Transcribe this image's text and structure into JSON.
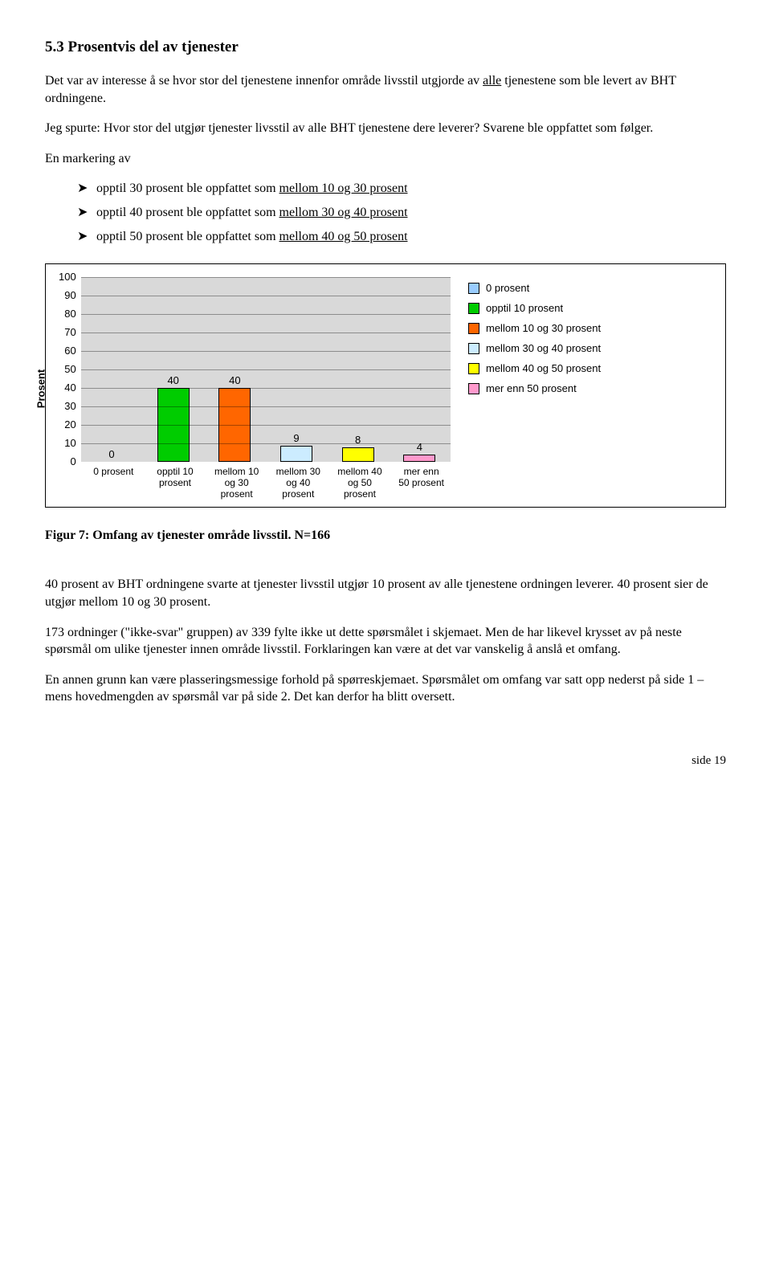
{
  "heading": "5.3   Prosentvis del av tjenester",
  "para1_a": "Det var av interesse å se hvor stor del tjenestene innenfor område livsstil utgjorde av ",
  "para1_u": "alle",
  "para1_b": " tjenestene som ble levert av BHT ordningene.",
  "para2": "Jeg spurte: Hvor stor del utgjør tjenester livsstil av alle BHT tjenestene dere leverer? Svarene ble oppfattet som følger.",
  "list_intro": "En markering av",
  "bullets": [
    {
      "pre": "opptil 30 prosent ble oppfattet som ",
      "u": "mellom 10 og 30 prosent"
    },
    {
      "pre": "opptil 40 prosent ble oppfattet som ",
      "u": "mellom 30 og 40 prosent"
    },
    {
      "pre": "opptil 50 prosent ble oppfattet som ",
      "u": "mellom 40 og 50 prosent"
    }
  ],
  "chart": {
    "y_label": "Prosent",
    "y_max": 100,
    "y_tick_step": 10,
    "plot_bg": "#d9d9d9",
    "grid_color": "#000000",
    "series": [
      {
        "label": "0 prosent",
        "value": 0,
        "color": "#99ccff"
      },
      {
        "label": "opptil 10 prosent",
        "value": 40,
        "color": "#00cc00"
      },
      {
        "label": "mellom 10 og 30 prosent",
        "value": 40,
        "color": "#ff6600"
      },
      {
        "label": "mellom 30 og 40 prosent",
        "value": 9,
        "color": "#ccecff"
      },
      {
        "label": "mellom 40 og 50 prosent",
        "value": 8,
        "color": "#ffff00"
      },
      {
        "label": "mer enn 50 prosent",
        "value": 4,
        "color": "#ff99cc"
      }
    ]
  },
  "fig_caption": "Figur 7: Omfang av tjenester område livsstil. N=166",
  "body1": "40 prosent av BHT ordningene svarte at tjenester livsstil utgjør 10 prosent av alle tjenestene ordningen leverer. 40 prosent sier de utgjør mellom 10 og 30 prosent.",
  "body2": "173 ordninger (\"ikke-svar\" gruppen) av 339 fylte ikke ut dette spørsmålet i skjemaet. Men de har likevel krysset av på neste spørsmål om ulike tjenester innen område livsstil. Forklaringen kan være at det var vanskelig å anslå et omfang.",
  "body3": "En annen grunn kan være plasseringsmessige forhold på spørreskjemaet. Spørsmålet om omfang var satt opp nederst på side 1 – mens hovedmengden av spørsmål var på side 2. Det kan derfor ha blitt oversett.",
  "footer": "side 19"
}
